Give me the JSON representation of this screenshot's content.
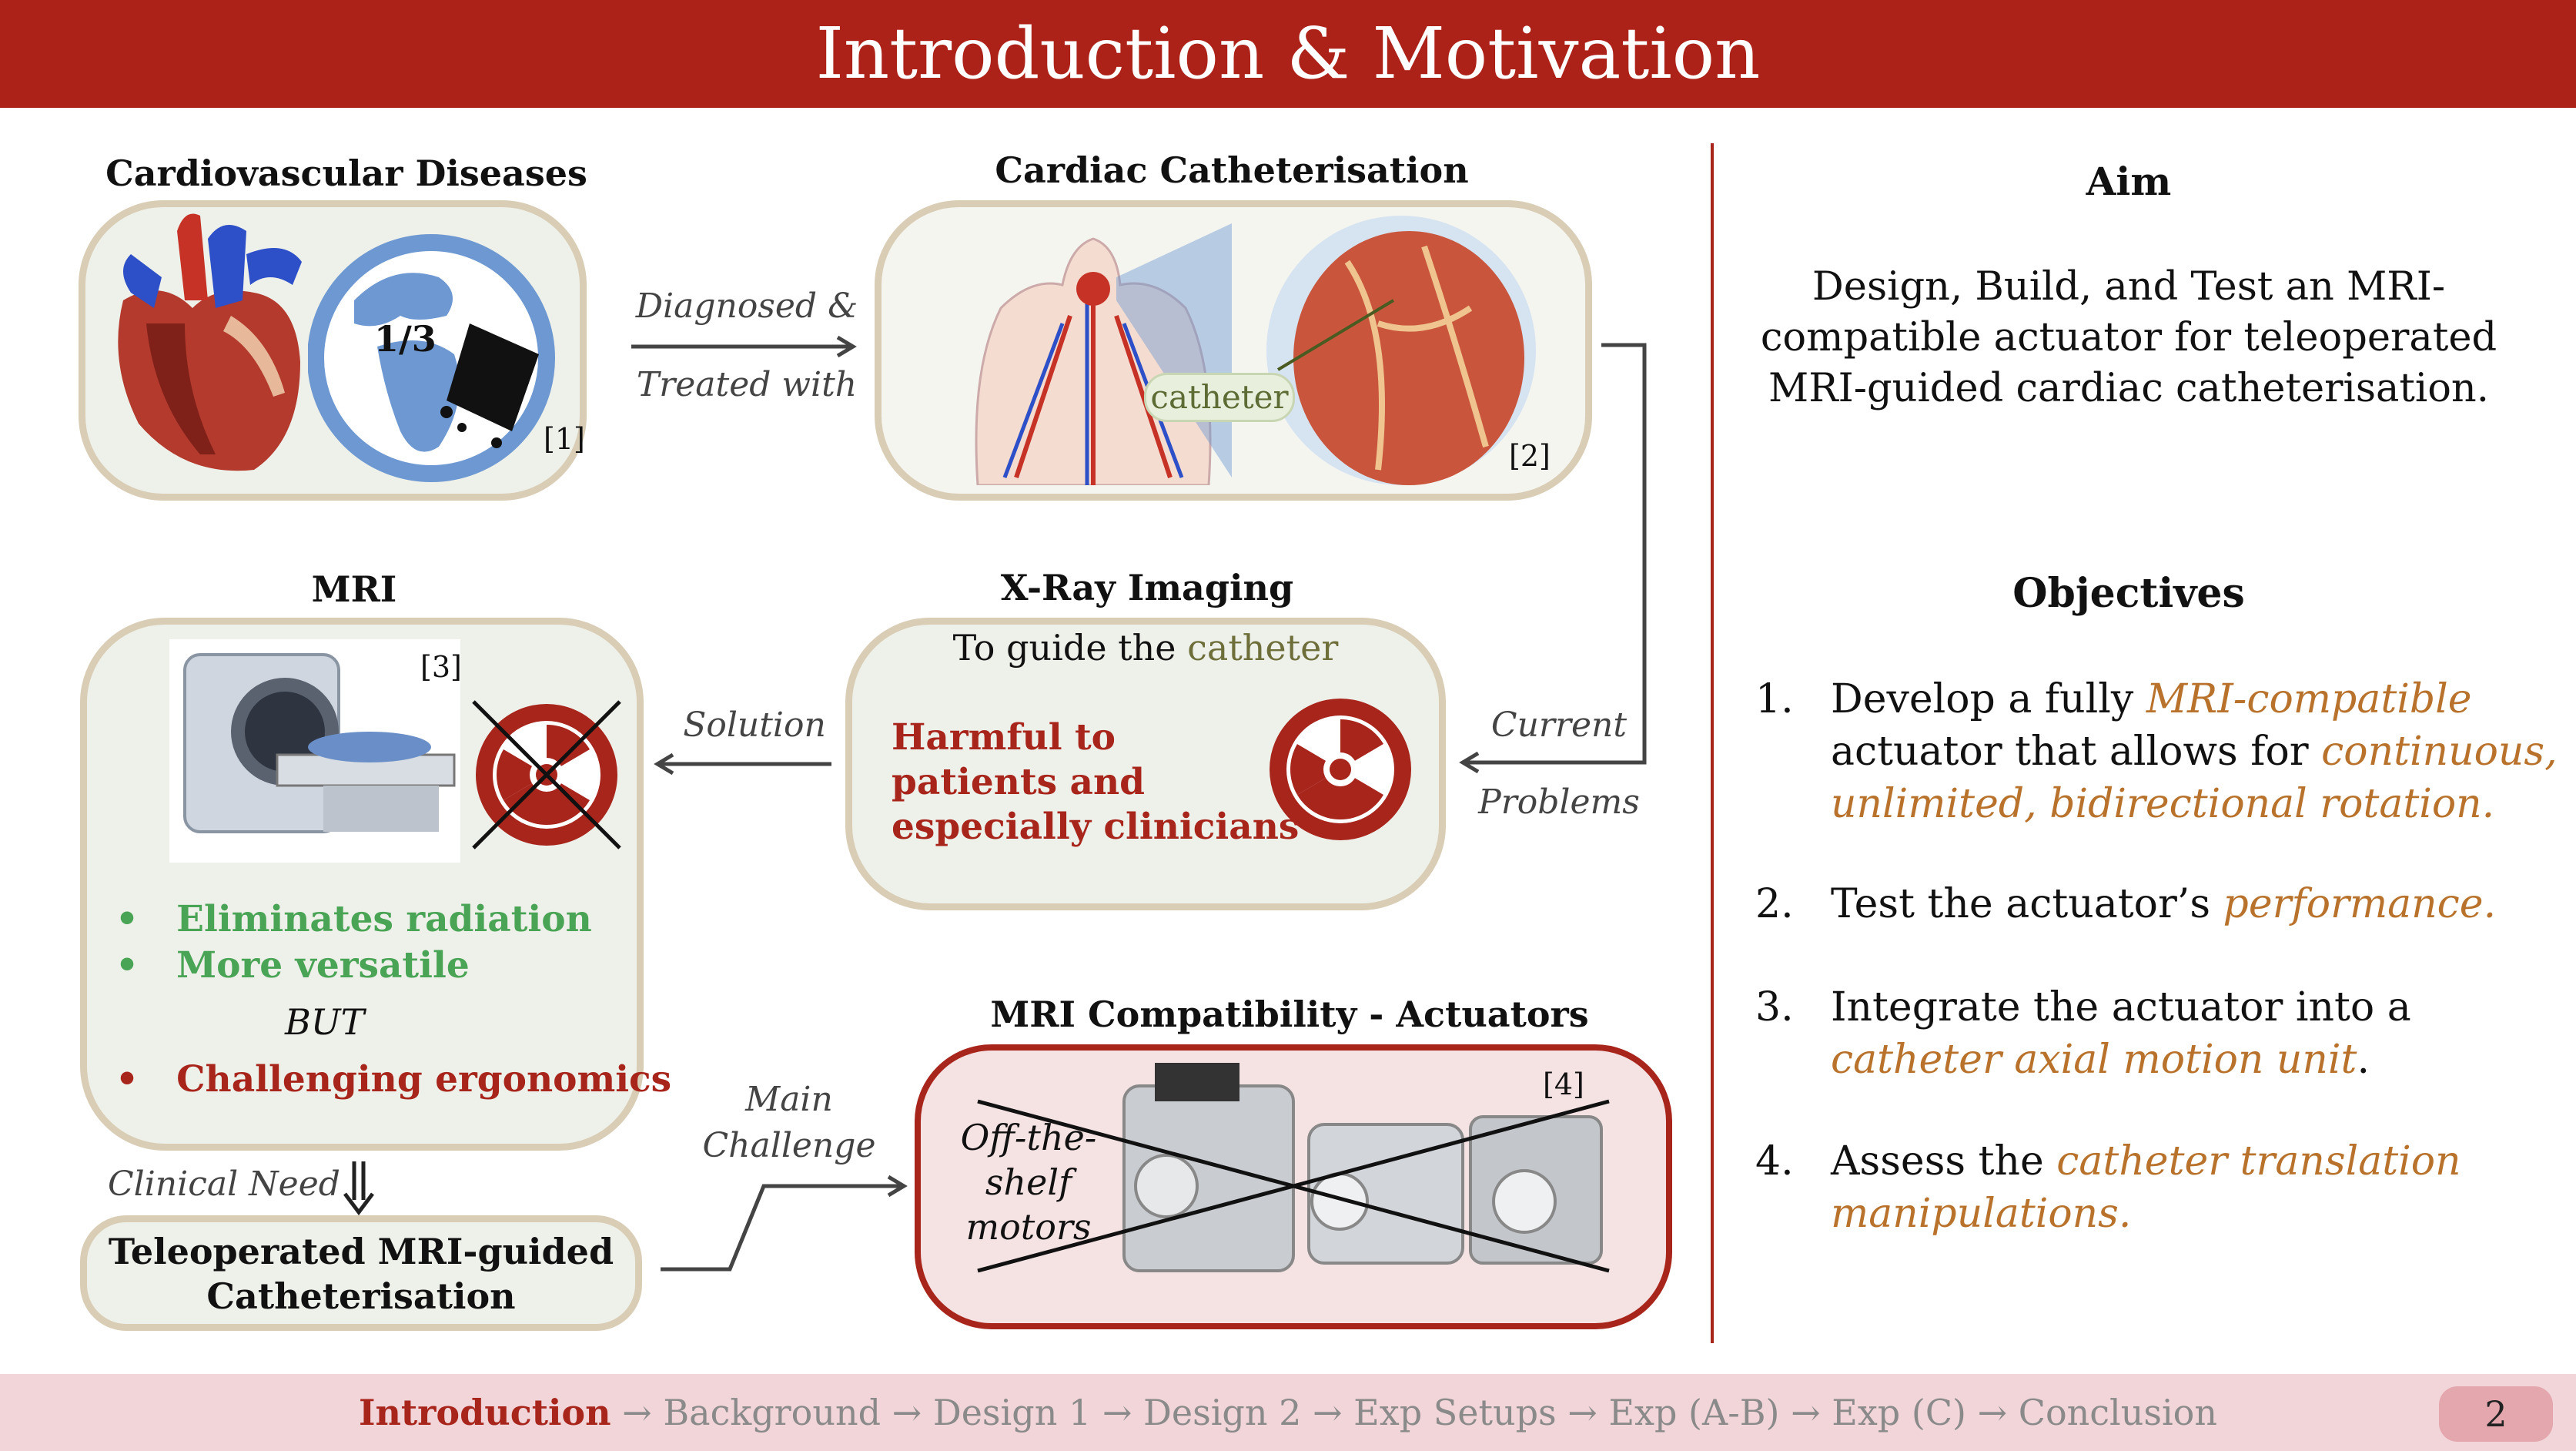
{
  "title": "Introduction & Motivation",
  "sections": {
    "cvd": {
      "heading": "Cardiovascular Diseases",
      "fraction": "1/3",
      "cite": "[1]"
    },
    "cath": {
      "heading": "Cardiac Catheterisation",
      "catheter_label": "catheter",
      "cite": "[2]"
    },
    "xray": {
      "heading": "X-Ray Imaging",
      "subtitle_prefix": "To guide the ",
      "subtitle_word": "catheter",
      "harm_lines": [
        "Harmful to",
        "patients and",
        "especially clinicians"
      ]
    },
    "mri": {
      "heading": "MRI",
      "cite": "[3]",
      "bullets_good": [
        "Eliminates radiation",
        "More versatile"
      ],
      "but": "BUT",
      "bullet_bad": "Challenging ergonomics"
    },
    "teleop": {
      "lines": [
        "Teleoperated MRI-guided",
        "Catheterisation"
      ]
    },
    "compat": {
      "heading": "MRI Compatibility - Actuators",
      "cite": "[4]",
      "motor_lines": [
        "Off-the-",
        "shelf",
        "motors"
      ]
    }
  },
  "arrow_labels": {
    "diagnosed": [
      "Diagnosed &",
      "Treated with"
    ],
    "problems": [
      "Current",
      "Problems"
    ],
    "solution": "Solution",
    "clinical_need": "Clinical Need",
    "main_challenge": [
      "Main",
      "Challenge"
    ]
  },
  "aim": {
    "heading": "Aim",
    "lines": [
      "Design, Build, and Test an MRI-",
      "compatible actuator for teleoperated",
      "MRI-guided cardiac catheterisation."
    ]
  },
  "objectives": {
    "heading": "Objectives",
    "items": [
      {
        "num": "1.",
        "pre": "Develop a fully ",
        "hl1": "MRI-compatible",
        "mid": "actuator that allows for ",
        "hl2": "continuous,",
        "hl3": "unlimited, bidirectional rotation."
      },
      {
        "num": "2.",
        "pre": "Test the actuator’s ",
        "hl1": "performance."
      },
      {
        "num": "3.",
        "pre": "Integrate the actuator into a",
        "hl1": "catheter axial motion unit",
        "post": "."
      },
      {
        "num": "4.",
        "pre": "Assess the ",
        "hl1": "catheter translation",
        "hl2": "manipulations."
      }
    ]
  },
  "footer": {
    "current": "Introduction",
    "rest": " → Background → Design 1 → Design 2 → Exp Setups → Exp (A-B) → Exp (C) → Conclusion",
    "page": "2"
  },
  "colors": {
    "brand": "#ad2218",
    "accent": "#b8722b",
    "good": "#4aa455",
    "panel": "#eef1ea",
    "panel_border": "#d9cdb5"
  }
}
